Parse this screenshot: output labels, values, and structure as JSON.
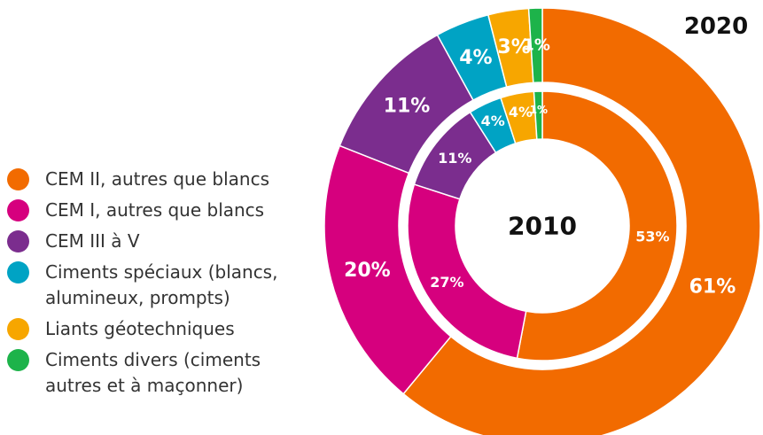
{
  "chart_data": {
    "type": "donut",
    "categories": [
      "CEM II, autres que blancs",
      "CEM I, autres que blancs",
      "CEM III à V",
      "Ciments spéciaux (blancs, alumineux, prompts)",
      "Liants géotechniques",
      "Ciments divers (ciments autres et à maçonner)"
    ],
    "colors": [
      "#f26b00",
      "#d6007e",
      "#7b2d8e",
      "#00a3c4",
      "#f7a600",
      "#1db34a"
    ],
    "series": [
      {
        "name": "2020",
        "values": [
          61,
          20,
          11,
          4,
          3,
          1
        ],
        "value_labels": [
          "61%",
          "20%",
          "11%",
          "4%",
          "3%",
          "1%"
        ]
      },
      {
        "name": "2010",
        "values": [
          53,
          27,
          11,
          4,
          4,
          1
        ],
        "value_labels": [
          "53%",
          "27%",
          "11%",
          "4%",
          "4%",
          "1%"
        ]
      }
    ]
  }
}
